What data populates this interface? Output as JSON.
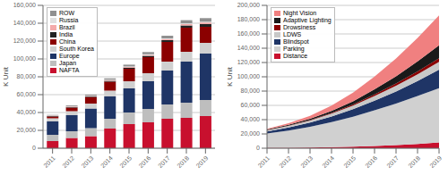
{
  "chart_data": [
    {
      "type": "bar",
      "stacked": true,
      "grid": true,
      "legend": "upper left",
      "ylabel": "K Unit",
      "categories": [
        "2011",
        "2012",
        "2013",
        "2014",
        "2015",
        "2016",
        "2017",
        "2018",
        "2019"
      ],
      "series": [
        {
          "name": "NAFTA",
          "color": "#C8102E",
          "values": [
            8000,
            11500,
            13500,
            22000,
            27000,
            29000,
            33000,
            34000,
            36000
          ]
        },
        {
          "name": "Japan",
          "color": "#BEBEBE",
          "values": [
            7000,
            7500,
            9000,
            11000,
            13000,
            15000,
            16000,
            17000,
            18000
          ]
        },
        {
          "name": "Europe",
          "color": "#1F3566",
          "values": [
            15000,
            18000,
            22000,
            25000,
            27000,
            31000,
            38000,
            46000,
            52000
          ]
        },
        {
          "name": "South Korea",
          "color": "#D0D0D0",
          "values": [
            3500,
            4500,
            5500,
            6500,
            8000,
            9000,
            10000,
            11000,
            12000
          ]
        },
        {
          "name": "China",
          "color": "#8B0000",
          "values": [
            2000,
            4000,
            7000,
            10000,
            14000,
            18000,
            22000,
            27000,
            18000
          ]
        },
        {
          "name": "India",
          "color": "#222222",
          "values": [
            500,
            700,
            800,
            1000,
            1200,
            1500,
            2000,
            2500,
            3000
          ]
        },
        {
          "name": "Brazil",
          "color": "#F4AAAA",
          "values": [
            400,
            500,
            600,
            700,
            800,
            1000,
            1200,
            1500,
            1800
          ]
        },
        {
          "name": "Russia",
          "color": "#E0E0E0",
          "values": [
            300,
            400,
            400,
            500,
            600,
            700,
            800,
            900,
            900
          ]
        },
        {
          "name": "ROW",
          "color": "#909090",
          "values": [
            600,
            900,
            1200,
            1500,
            2000,
            2500,
            3000,
            3500,
            4000
          ]
        }
      ],
      "ylim": [
        0,
        160000
      ],
      "yticks": [
        0,
        {
          "value": 20000,
          "label": "20,000"
        },
        {
          "value": 40000,
          "label": "40,000"
        },
        {
          "value": 60000,
          "label": "60,000"
        },
        {
          "value": 80000,
          "label": "80,000"
        },
        {
          "value": 100000,
          "label": "100,000"
        },
        {
          "value": 120000,
          "label": "120,000"
        },
        {
          "value": 140000,
          "label": "140,000"
        },
        {
          "value": 160000,
          "label": "160,000"
        }
      ]
    },
    {
      "type": "area",
      "stacked": true,
      "grid": true,
      "legend": "upper left",
      "ylabel": "K Unit",
      "x": [
        2011,
        2012,
        2013,
        2014,
        2015,
        2016,
        2017,
        2018,
        2019
      ],
      "xlim": [
        2011,
        2019
      ],
      "xticks": [
        2011,
        2012,
        2013,
        2014,
        2015,
        2016,
        2017,
        2018,
        2019
      ],
      "series": [
        {
          "name": "Distance",
          "color": "#C8102E",
          "values": [
            500,
            700,
            1000,
            1500,
            2200,
            3200,
            4500,
            6000,
            8000
          ]
        },
        {
          "name": "Parking",
          "color": "#D0D0D0",
          "values": [
            20000,
            24000,
            29000,
            35000,
            42000,
            50000,
            58000,
            67000,
            76000
          ]
        },
        {
          "name": "Blindspot",
          "color": "#1F3566",
          "values": [
            3000,
            4500,
            6000,
            8000,
            10500,
            13500,
            17000,
            21000,
            26000
          ]
        },
        {
          "name": "LDWS",
          "color": "#C8C8C8",
          "values": [
            1500,
            2000,
            2800,
            3800,
            5000,
            6500,
            8000,
            9500,
            11000
          ]
        },
        {
          "name": "Drowsiness",
          "color": "#8B0000",
          "values": [
            300,
            500,
            700,
            1000,
            1500,
            2200,
            3000,
            4000,
            5000
          ]
        },
        {
          "name": "Adaptive Lighting",
          "color": "#1A1A1A",
          "values": [
            800,
            1200,
            1800,
            2800,
            4500,
            7000,
            10000,
            14000,
            18000
          ]
        },
        {
          "name": "Night Vision",
          "color": "#F08080",
          "values": [
            1000,
            2000,
            4000,
            7500,
            12000,
            18000,
            25000,
            33000,
            42000
          ]
        }
      ],
      "ylim": [
        0,
        200000
      ],
      "yticks": [
        0,
        {
          "value": 20000,
          "label": "20,000"
        },
        {
          "value": 40000,
          "label": "40,000"
        },
        {
          "value": 60000,
          "label": "60,000"
        },
        {
          "value": 80000,
          "label": "80,000"
        },
        {
          "value": 100000,
          "label": "100,000"
        },
        {
          "value": 120000,
          "label": "120,000"
        },
        {
          "value": 140000,
          "label": "140,000"
        },
        {
          "value": 160000,
          "label": "160,000"
        },
        {
          "value": 180000,
          "label": "180,000"
        },
        {
          "value": 200000,
          "label": "200,000"
        }
      ]
    }
  ]
}
